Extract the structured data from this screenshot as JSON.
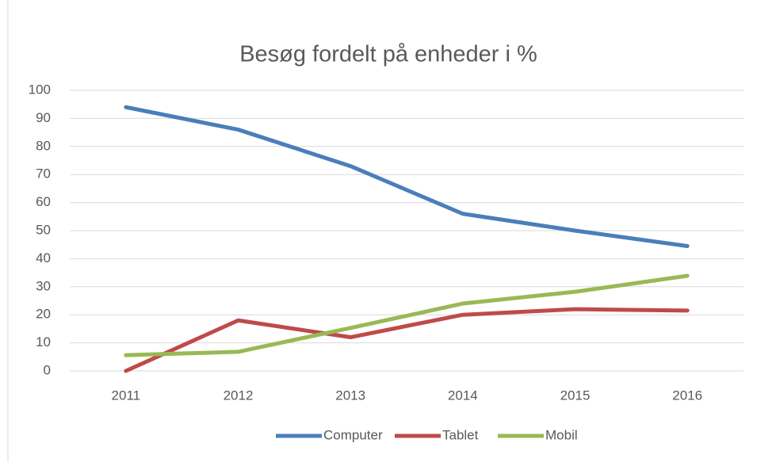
{
  "chart_data": {
    "type": "line",
    "title": "Besøg fordelt på enheder i %",
    "categories": [
      "2011",
      "2012",
      "2013",
      "2014",
      "2015",
      "2016"
    ],
    "series": [
      {
        "name": "Computer",
        "color": "#4a7ebb",
        "values": [
          94,
          86,
          73,
          56,
          50,
          44.5
        ]
      },
      {
        "name": "Tablet",
        "color": "#be4b48",
        "values": [
          0,
          18,
          12,
          20,
          22,
          21.5
        ]
      },
      {
        "name": "Mobil",
        "color": "#98b954",
        "values": [
          5.6,
          6.8,
          15.3,
          24,
          28.2,
          33.9
        ]
      }
    ],
    "ylim": [
      0,
      100
    ],
    "yticks": [
      0,
      10,
      20,
      30,
      40,
      50,
      60,
      70,
      80,
      90,
      100
    ],
    "grid": true,
    "legend": "bottom"
  }
}
